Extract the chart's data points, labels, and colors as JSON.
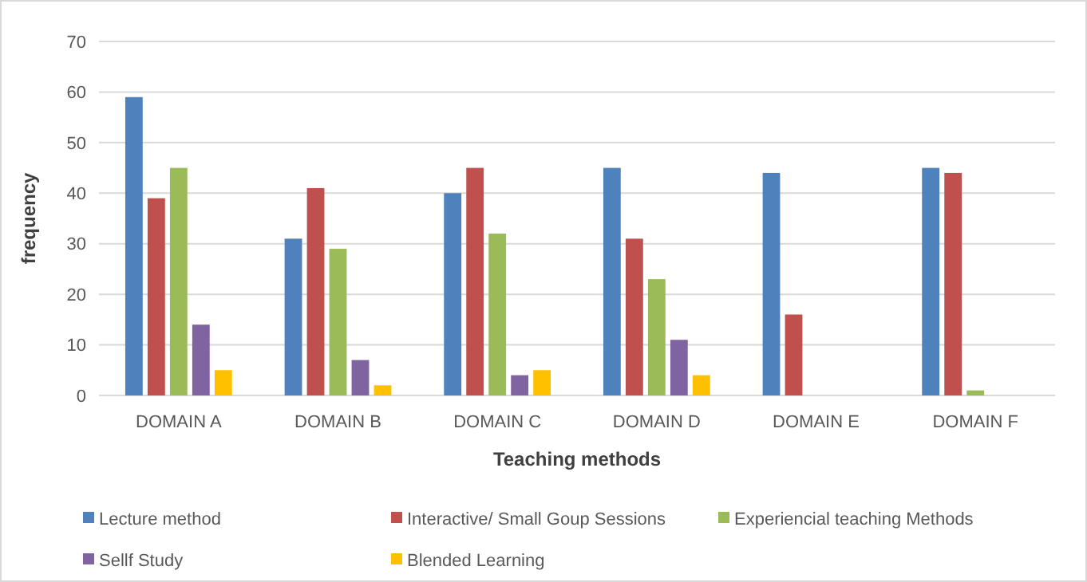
{
  "chart_data": {
    "type": "bar",
    "xlabel": "Teaching methods",
    "ylabel": "frequency",
    "categories": [
      "DOMAIN A",
      "DOMAIN B",
      "DOMAIN C",
      "DOMAIN D",
      "DOMAIN E",
      "DOMAIN F"
    ],
    "series": [
      {
        "name": "Lecture method",
        "color": "#4f81bd",
        "values": [
          59,
          31,
          40,
          45,
          44,
          45
        ]
      },
      {
        "name": "Interactive/ Small Goup Sessions",
        "color": "#c0504d",
        "values": [
          39,
          41,
          45,
          31,
          16,
          44
        ]
      },
      {
        "name": "Experiencial teaching Methods",
        "color": "#9bbb59",
        "values": [
          45,
          29,
          32,
          23,
          0,
          1
        ]
      },
      {
        "name": "Sellf Study",
        "color": "#8064a2",
        "values": [
          14,
          7,
          4,
          11,
          0,
          0
        ]
      },
      {
        "name": "Blended Learning",
        "color": "#ffc000",
        "values": [
          5,
          2,
          5,
          4,
          0,
          0
        ]
      }
    ],
    "ylim": [
      0,
      70
    ],
    "yticks": [
      0,
      10,
      20,
      30,
      40,
      50,
      60,
      70
    ],
    "grid": "y",
    "legend": "bottom"
  }
}
